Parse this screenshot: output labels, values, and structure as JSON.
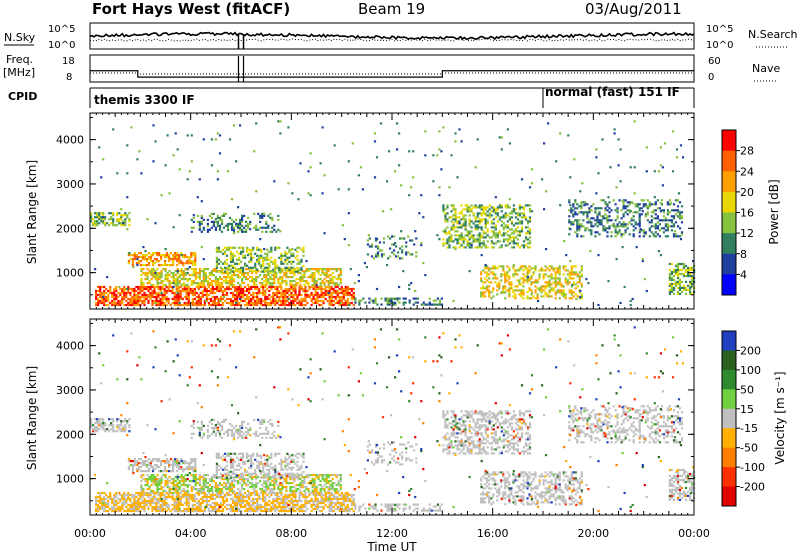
{
  "header": {
    "station": "Fort Hays West (fitACF)",
    "beam": "Beam 19",
    "date": "03/Aug/2011"
  },
  "panels": {
    "noise": {
      "left_label": "N.Sky",
      "left_ticks": [
        "10^5",
        "10^0"
      ],
      "right_ticks": [
        "10^5",
        "10^0"
      ],
      "right_label": "N.Search"
    },
    "freq": {
      "left_label_line1": "Freq.",
      "left_label_line2": "[MHz]",
      "left_ticks": [
        "18",
        "8"
      ],
      "right_ticks": [
        "60",
        "0"
      ],
      "right_label": "Nave"
    },
    "cpid": {
      "label": "CPID",
      "segments": [
        {
          "text": "themis 3300 IF",
          "start_hour": 0
        },
        {
          "text": "normal (fast) 151 IF",
          "start_hour": 18
        }
      ]
    }
  },
  "chart_data": [
    {
      "type": "heatmap",
      "ylabel": "Slant Range [km]",
      "y_ticks": [
        "4000",
        "3000",
        "2000",
        "1000"
      ],
      "ylim": [
        180,
        4600
      ],
      "colorbar_label": "Power [dB]",
      "colorbar_ticks": [
        "28",
        "24",
        "20",
        "16",
        "12",
        "8",
        "4"
      ],
      "colorbar_colors": [
        "#ff0000",
        "#ff6000",
        "#ffa000",
        "#e8d800",
        "#88c040",
        "#308060",
        "#2040a0",
        "#0000ff"
      ]
    },
    {
      "type": "heatmap",
      "ylabel": "Slant Range [km]",
      "y_ticks": [
        "4000",
        "3000",
        "2000",
        "1000"
      ],
      "ylim": [
        180,
        4600
      ],
      "colorbar_label": "Velocity [m s⁻¹]",
      "colorbar_ticks": [
        "200",
        "100",
        "50",
        "15",
        "-15",
        "-50",
        "-100",
        "-200"
      ],
      "colorbar_colors": [
        "#2040c0",
        "#2a6020",
        "#2e8a2e",
        "#70d040",
        "#c0c0c0",
        "#ffb000",
        "#ff8000",
        "#ff3000",
        "#e00000"
      ]
    }
  ],
  "x_axis": {
    "label": "Time UT",
    "ticks": [
      "00:00",
      "04:00",
      "08:00",
      "12:00",
      "16:00",
      "20:00",
      "00:00"
    ]
  },
  "colors": {
    "low_power": "#2040a0",
    "high_power": "#ff3000",
    "ground_scatter": "#c0c0c0"
  }
}
